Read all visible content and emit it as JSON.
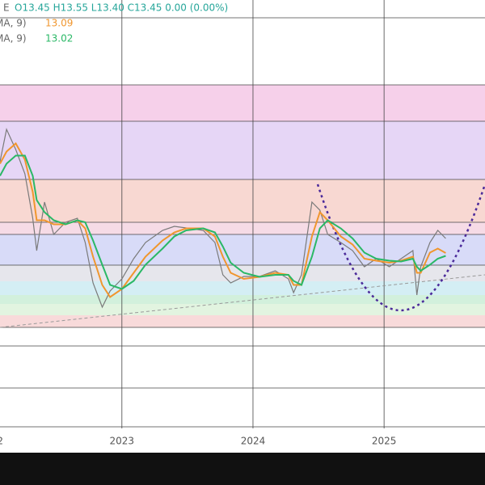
{
  "chart_data": {
    "type": "line",
    "legend_lines": [
      {
        "label": "E",
        "text": "O13.45  H13.55  L13.40  C13.45  0.00 (0.00%)"
      },
      {
        "label": "MA, 9)",
        "text": "13.09"
      },
      {
        "label": "MA, 9)",
        "text": "13.02"
      }
    ],
    "x": [
      2022.07,
      2022.12,
      2022.19,
      2022.26,
      2022.32,
      2022.35,
      2022.41,
      2022.48,
      2022.57,
      2022.66,
      2022.72,
      2022.78,
      2022.85,
      2022.91,
      2023.0,
      2023.09,
      2023.18,
      2023.31,
      2023.4,
      2023.49,
      2023.62,
      2023.71,
      2023.77,
      2023.83,
      2023.93,
      2024.05,
      2024.17,
      2024.27,
      2024.31,
      2024.37,
      2024.45,
      2024.51,
      2024.57,
      2024.67,
      2024.76,
      2024.85,
      2024.94,
      2025.04,
      2025.13,
      2025.22,
      2025.25,
      2025.28,
      2025.35,
      2025.41,
      2025.47
    ],
    "series": [
      {
        "color": "#7a7a7a",
        "values": [
          15.35,
          16.15,
          15.65,
          15.05,
          13.95,
          13.15,
          14.35,
          13.55,
          13.85,
          13.95,
          13.35,
          12.35,
          11.75,
          12.15,
          12.45,
          12.95,
          13.35,
          13.65,
          13.75,
          13.71,
          13.65,
          13.35,
          12.55,
          12.35,
          12.51,
          12.51,
          12.65,
          12.45,
          12.11,
          12.55,
          14.35,
          14.15,
          13.55,
          13.35,
          13.15,
          12.75,
          12.95,
          12.75,
          12.95,
          13.15,
          12.05,
          12.75,
          13.35,
          13.65,
          13.45
        ]
      },
      {
        "color": "#f0962e",
        "values": [
          15.3,
          15.6,
          15.8,
          15.4,
          14.6,
          13.9,
          13.9,
          13.8,
          13.8,
          13.9,
          13.7,
          13.0,
          12.3,
          12.0,
          12.2,
          12.6,
          13.0,
          13.4,
          13.6,
          13.7,
          13.7,
          13.5,
          13.0,
          12.6,
          12.45,
          12.5,
          12.6,
          12.55,
          12.3,
          12.3,
          13.5,
          14.1,
          13.9,
          13.5,
          13.3,
          12.95,
          12.9,
          12.85,
          12.9,
          13.0,
          12.6,
          12.6,
          13.1,
          13.2,
          13.09
        ]
      },
      {
        "color": "#2ab866",
        "values": [
          15.0,
          15.3,
          15.5,
          15.5,
          15.0,
          14.4,
          14.1,
          13.9,
          13.8,
          13.9,
          13.85,
          13.4,
          12.8,
          12.3,
          12.2,
          12.4,
          12.8,
          13.2,
          13.5,
          13.65,
          13.7,
          13.6,
          13.25,
          12.85,
          12.6,
          12.5,
          12.55,
          12.55,
          12.4,
          12.3,
          13.0,
          13.7,
          13.9,
          13.7,
          13.45,
          13.1,
          12.95,
          12.9,
          12.88,
          12.95,
          12.75,
          12.65,
          12.8,
          12.95,
          13.02
        ]
      }
    ],
    "xlim": [
      2022.07,
      2025.77
    ],
    "ylim": [
      8.75,
      19.35
    ],
    "xticks": [
      {
        "value": 2022,
        "label": "2"
      },
      2023,
      2024,
      2025
    ],
    "grid": true
  }
}
